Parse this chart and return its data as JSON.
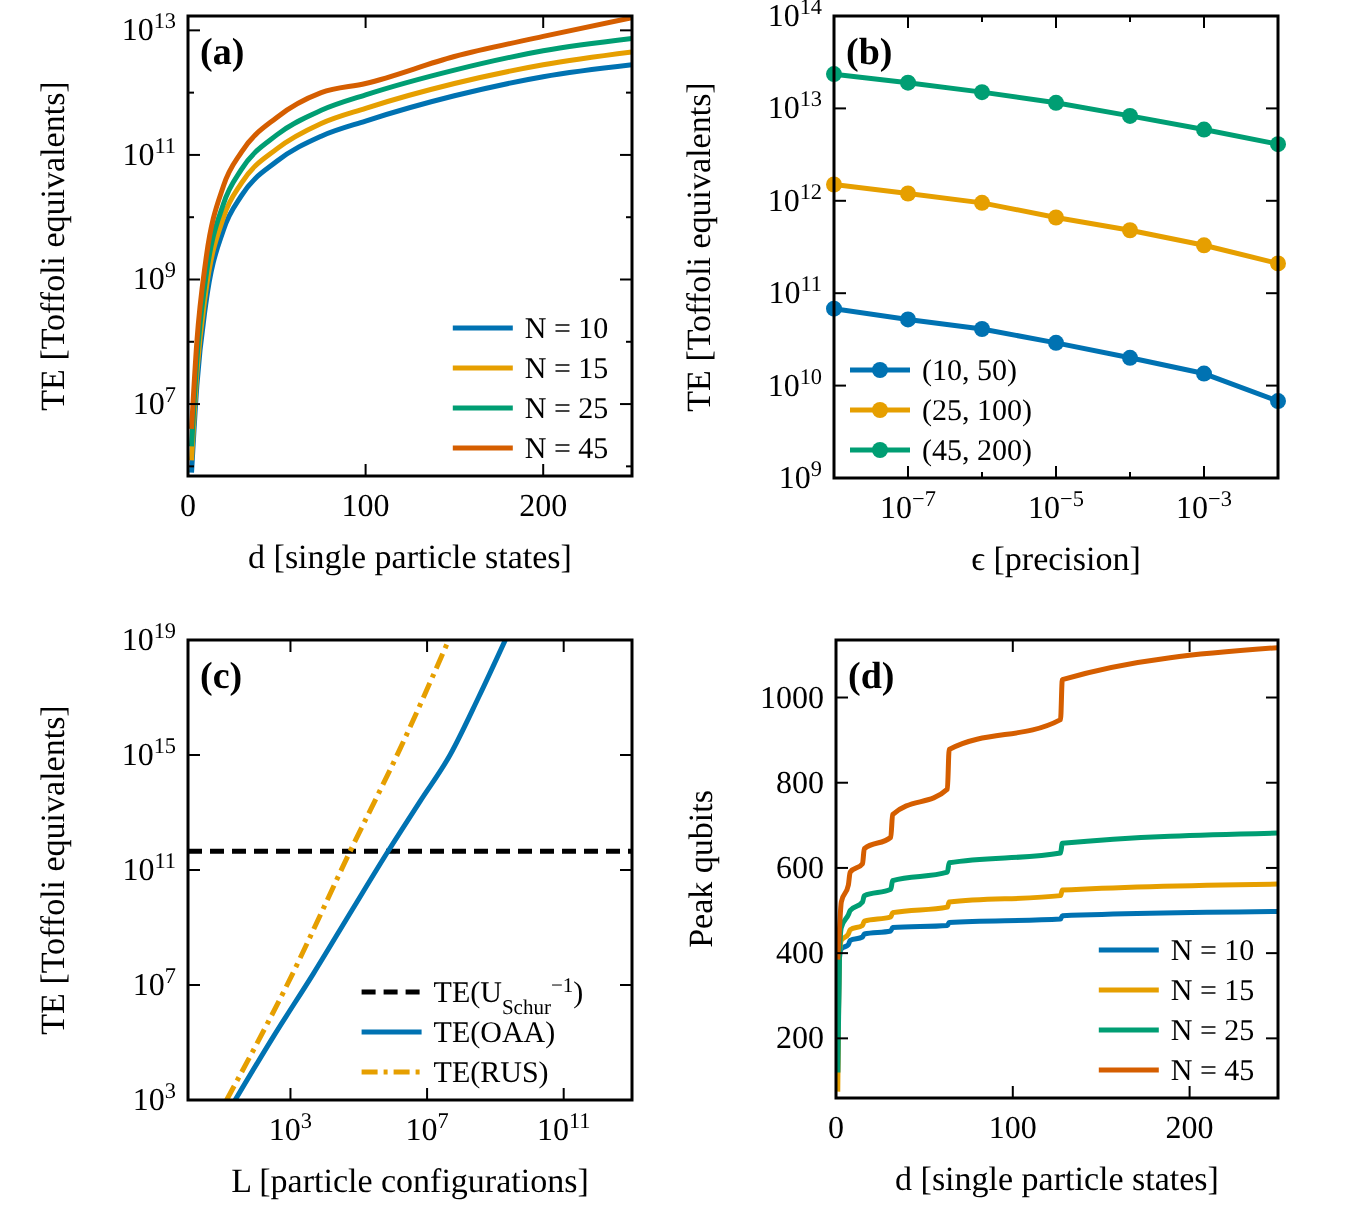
{
  "chart_data": [
    {
      "type": "line",
      "annotations": [
        "(a)"
      ],
      "xlabel": "d [single particle states]",
      "ylabel": "TE [Toffoli equivalents]",
      "log": "y",
      "xlim": [
        0,
        250
      ],
      "xticks": [
        0,
        100,
        200
      ],
      "ylim": [
        700000,
        17000000000000
      ],
      "yticks": [
        {
          "value": 1000000.0,
          "label": null
        },
        {
          "value": 10000000.0,
          "label": "10$^{7}$"
        },
        {
          "value": 100000000.0,
          "label": null
        },
        {
          "value": 1000000000.0,
          "label": "10$^{9}$"
        },
        {
          "value": 10000000000.0,
          "label": null
        },
        {
          "value": 100000000000.0,
          "label": "10$^{11}$"
        },
        {
          "value": 1000000000000.0,
          "label": null
        },
        {
          "value": 10000000000000.0,
          "label": "10$^{13}$"
        }
      ],
      "legend": "lower right",
      "x": [
        2,
        5,
        10,
        20,
        30,
        50,
        75,
        100,
        150,
        200,
        250
      ],
      "series": [
        {
          "name": "N = 10",
          "color": "#0072b2",
          "values": [
            790000.0,
            20000000.0,
            400000000.0,
            6300000000.0,
            22000000000.0,
            79000000000.0,
            200000000000.0,
            350000000000.0,
            890000000000.0,
            1800000000000.0,
            2800000000000.0
          ]
        },
        {
          "name": "N = 15",
          "color": "#e69f00",
          "values": [
            1250000.0,
            32000000.0,
            630000000.0,
            10000000000.0,
            35000000000.0,
            125000000000.0,
            320000000000.0,
            560000000000.0,
            1400000000000.0,
            2800000000000.0,
            4500000000000.0
          ]
        },
        {
          "name": "N = 25",
          "color": "#009e73",
          "values": [
            2100000.0,
            52000000.0,
            1050000000.0,
            16500000000.0,
            58000000000.0,
            210000000000.0,
            520000000000.0,
            920000000000.0,
            2300000000000.0,
            4700000000000.0,
            7400000000000.0
          ]
        },
        {
          "name": "N = 45",
          "color": "#d55e00",
          "values": [
            4000000.0,
            100000000.0,
            2000000000.0,
            32000000000.0,
            110000000000.0,
            400000000000.0,
            1000000000000.0,
            1400000000000.0,
            3800000000000.0,
            8000000000000.0,
            16000000000000.0
          ]
        }
      ]
    },
    {
      "type": "line",
      "annotations": [
        "(b)"
      ],
      "xlabel": "ϵ [precision]",
      "ylabel": "TE [Toffoli equivalents]",
      "log": "xy",
      "xlim": [
        1e-08,
        0.01
      ],
      "xticks": [
        {
          "value": 1e-08,
          "label": null
        },
        {
          "value": 1e-07,
          "label": "10$^{−7}$"
        },
        {
          "value": 1e-06,
          "label": null
        },
        {
          "value": 1e-05,
          "label": "10$^{−5}$"
        },
        {
          "value": 0.0001,
          "label": null
        },
        {
          "value": 0.001,
          "label": "10$^{−3}$"
        },
        {
          "value": 0.01,
          "label": null
        }
      ],
      "ylim": [
        1000000000.0,
        100000000000000.0
      ],
      "yticks": [
        {
          "value": 1000000000.0,
          "label": "10$^{9}$"
        },
        {
          "value": 10000000000.0,
          "label": "10$^{10}$"
        },
        {
          "value": 100000000000.0,
          "label": "10$^{11}$"
        },
        {
          "value": 1000000000000.0,
          "label": "10$^{12}$"
        },
        {
          "value": 10000000000000.0,
          "label": "10$^{13}$"
        },
        {
          "value": 100000000000000.0,
          "label": "10$^{14}$"
        }
      ],
      "legend": "lower left",
      "marker": "circle",
      "x": [
        1e-08,
        1e-07,
        1e-06,
        1e-05,
        0.0001,
        0.001,
        0.01
      ],
      "series": [
        {
          "name": "(10, 50)",
          "color": "#0072b2",
          "values": [
            68000000000.0,
            52000000000.0,
            41000000000.0,
            29000000000.0,
            20000000000.0,
            13500000000.0,
            6800000000.0
          ]
        },
        {
          "name": "(25, 100)",
          "color": "#e69f00",
          "values": [
            1500000000000.0,
            1200000000000.0,
            950000000000.0,
            660000000000.0,
            480000000000.0,
            330000000000.0,
            210000000000.0
          ]
        },
        {
          "name": "(45, 200)",
          "color": "#009e73",
          "values": [
            23500000000000.0,
            19000000000000.0,
            15000000000000.0,
            11500000000000.0,
            8300000000000.0,
            5900000000000.0,
            4100000000000.0
          ]
        }
      ]
    },
    {
      "type": "line",
      "annotations": [
        "(c)"
      ],
      "xlabel": "L [particle configurations]",
      "ylabel": "TE [Toffoli equivalents]",
      "log": "xy",
      "xlim": [
        1,
        10000000000000.0
      ],
      "xticks": [
        {
          "value": 1000.0,
          "label": "10$^{3}$"
        },
        {
          "value": 10000000.0,
          "label": "10$^{7}$"
        },
        {
          "value": 100000000000.0,
          "label": "10$^{11}$"
        }
      ],
      "ylim": [
        1000.0,
        1e+19
      ],
      "yticks": [
        {
          "value": 1000.0,
          "label": "10$^{3}$"
        },
        {
          "value": 10000000.0,
          "label": "10$^{7}$"
        },
        {
          "value": 100000000000.0,
          "label": "10$^{11}$"
        },
        {
          "value": 1000000000000000.0,
          "label": "10$^{15}$"
        },
        {
          "value": 1e+19,
          "label": "10$^{19}$"
        }
      ],
      "legend": "lower right",
      "ref_lines": [
        {
          "axis": "y",
          "value": 450000000000.0,
          "label": "TE(U$_{Schur}$$^{−1}$)",
          "color": "#000000",
          "line_style": "dashed"
        }
      ],
      "series": [
        {
          "name": "TE(OAA)",
          "color": "#0072b2",
          "x": [
            24,
            316,
            4700,
            63000,
            720000,
            6300000,
            47000000,
            320000000,
            1950000000
          ],
          "values": [
            1000.0,
            160000.0,
            25000000.0,
            4000000000.0,
            450000000000.0,
            25000000000000.0,
            1000000000000000.0,
            1e+17,
            1e+19
          ]
        },
        {
          "name": "TE(RUS)",
          "color": "#e69f00",
          "line_style": "dashdot",
          "x": [
            13.5,
            794,
            56000,
            1600000,
            43000000
          ],
          "values": [
            1000.0,
            10000000.0,
            450000000000.0,
            1600000000000000.0,
            1e+19
          ]
        }
      ]
    },
    {
      "type": "line",
      "annotations": [
        "(d)"
      ],
      "xlabel": "d [single particle states]",
      "ylabel": "Peak qubits",
      "xlim": [
        0,
        250
      ],
      "xticks": [
        0,
        100,
        200
      ],
      "ylim": [
        60,
        1135
      ],
      "yticks": [
        200,
        400,
        600,
        800,
        1000
      ],
      "legend": "lower right",
      "series": [
        {
          "name": "N = 10",
          "color": "#0072b2",
          "x": [
            1,
            2,
            3,
            7,
            8,
            15,
            16,
            31,
            32,
            63,
            64,
            127,
            128,
            250
          ],
          "values": [
            120,
            390,
            410,
            420,
            430,
            438,
            445,
            452,
            460,
            465,
            472,
            480,
            488,
            498
          ]
        },
        {
          "name": "N = 15",
          "color": "#e69f00",
          "x": [
            1,
            2,
            3,
            7,
            8,
            15,
            16,
            31,
            32,
            63,
            64,
            127,
            128,
            250
          ],
          "values": [
            75,
            400,
            430,
            445,
            455,
            465,
            475,
            485,
            495,
            508,
            520,
            535,
            548,
            562
          ]
        },
        {
          "name": "N = 25",
          "color": "#009e73",
          "x": [
            1,
            2,
            3,
            7,
            8,
            15,
            16,
            31,
            32,
            63,
            64,
            127,
            128,
            250
          ],
          "values": [
            120,
            400,
            460,
            490,
            500,
            520,
            535,
            550,
            570,
            590,
            612,
            635,
            658,
            682
          ]
        },
        {
          "name": "N = 45",
          "color": "#d55e00",
          "x": [
            1,
            2,
            3,
            7,
            8,
            15,
            16,
            31,
            32,
            63,
            64,
            127,
            128,
            250
          ],
          "values": [
            385,
            460,
            520,
            560,
            590,
            610,
            645,
            672,
            725,
            785,
            878,
            948,
            1042,
            1117
          ]
        }
      ]
    }
  ]
}
